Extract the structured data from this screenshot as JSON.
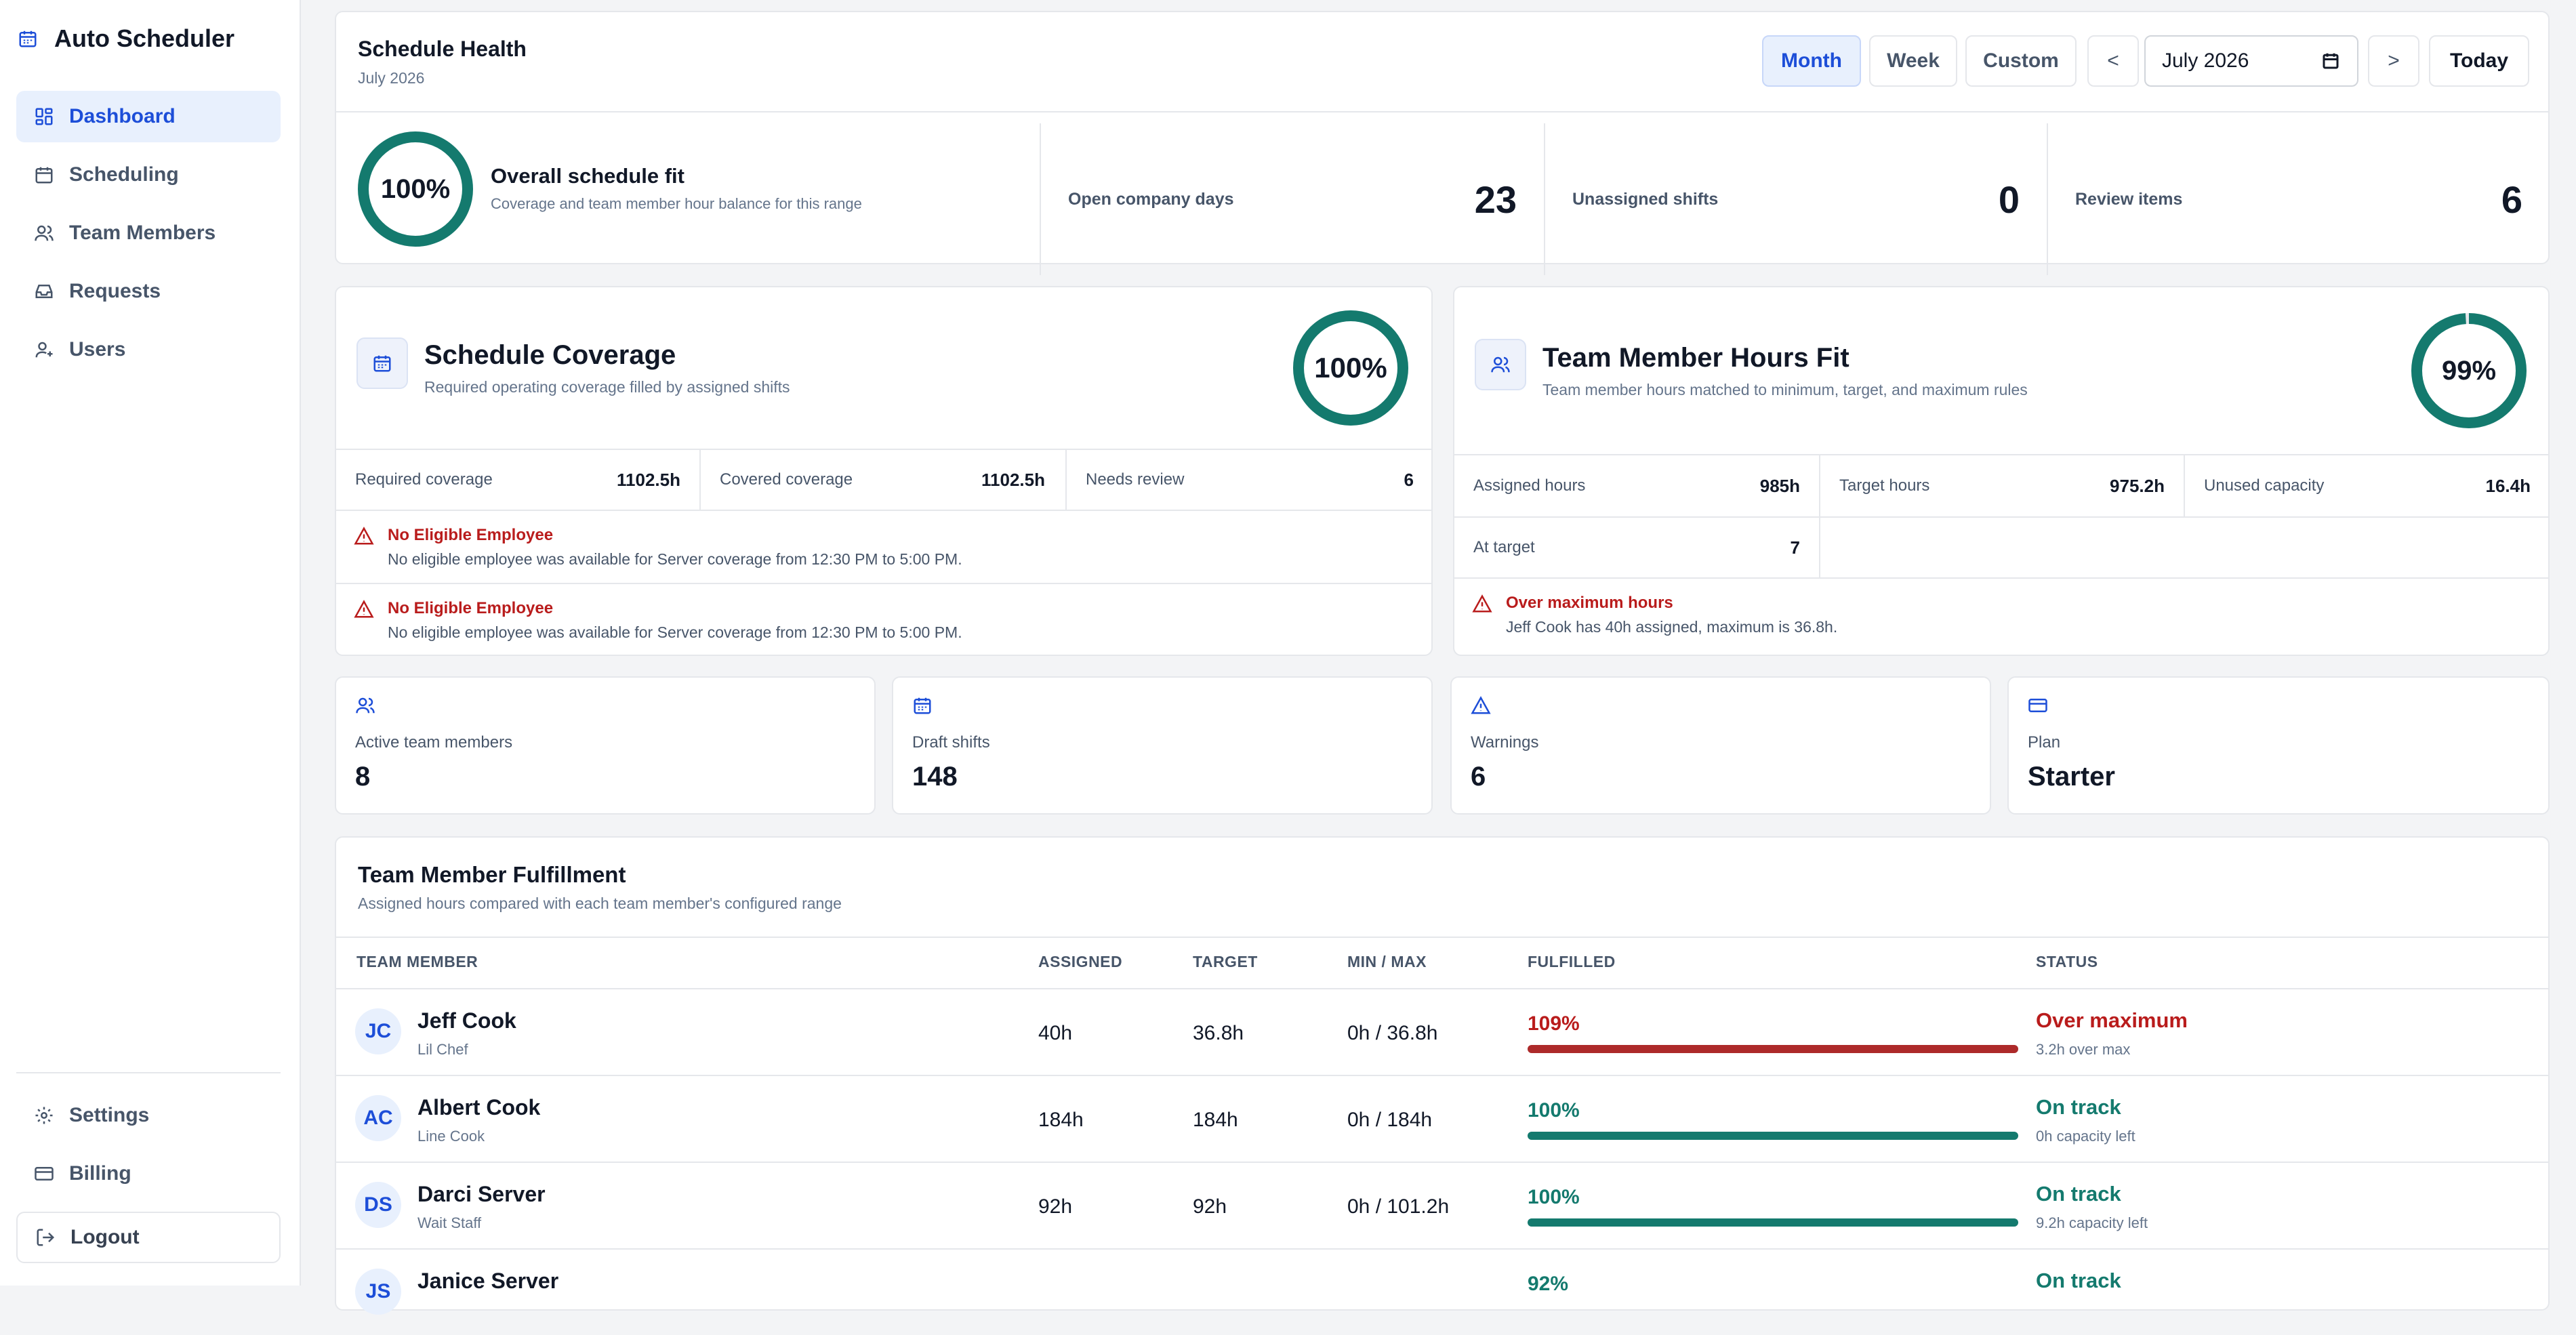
{
  "app": {
    "title": "Auto Scheduler",
    "icon": "calendar-icon"
  },
  "sidebar": {
    "items": [
      {
        "label": "Dashboard",
        "icon": "dashboard-icon",
        "active": true
      },
      {
        "label": "Scheduling",
        "icon": "calendar-icon"
      },
      {
        "label": "Team Members",
        "icon": "users-icon"
      },
      {
        "label": "Requests",
        "icon": "inbox-icon"
      },
      {
        "label": "Users",
        "icon": "user-plus-icon"
      }
    ],
    "bottom": [
      {
        "label": "Settings",
        "icon": "gear-icon"
      },
      {
        "label": "Billing",
        "icon": "credit-card-icon"
      },
      {
        "label": "Logout",
        "icon": "logout-icon"
      }
    ]
  },
  "health": {
    "title": "Schedule Health",
    "subtitle": "July 2026",
    "range_tabs": [
      "Month",
      "Week",
      "Custom"
    ],
    "active_tab": "Month",
    "prev_label": "<",
    "next_label": ">",
    "date_value": "July 2026",
    "today_label": "Today",
    "overall": {
      "percent_label": "100%",
      "percent": 100,
      "title": "Overall schedule fit",
      "description": "Coverage and team member hour balance for this range"
    },
    "stats": [
      {
        "label": "Open company days",
        "value": "23"
      },
      {
        "label": "Unassigned shifts",
        "value": "0"
      },
      {
        "label": "Review items",
        "value": "6"
      }
    ]
  },
  "coverage": {
    "title": "Schedule Coverage",
    "subtitle": "Required operating coverage filled by assigned shifts",
    "percent_label": "100%",
    "percent": 100,
    "metrics": [
      {
        "label": "Required coverage",
        "value": "1102.5h"
      },
      {
        "label": "Covered coverage",
        "value": "1102.5h"
      },
      {
        "label": "Needs review",
        "value": "6"
      }
    ],
    "alerts": [
      {
        "title": "No Eligible Employee",
        "description": "No eligible employee was available for Server coverage from 12:30 PM to 5:00 PM."
      },
      {
        "title": "No Eligible Employee",
        "description": "No eligible employee was available for Server coverage from 12:30 PM to 5:00 PM."
      }
    ]
  },
  "hours_fit": {
    "title": "Team Member Hours Fit",
    "subtitle": "Team member hours matched to minimum, target, and maximum rules",
    "percent_label": "99%",
    "percent": 99,
    "metrics": [
      {
        "label": "Assigned hours",
        "value": "985h"
      },
      {
        "label": "Target hours",
        "value": "975.2h"
      },
      {
        "label": "Unused capacity",
        "value": "16.4h"
      },
      {
        "label": "At target",
        "value": "7"
      }
    ],
    "alert": {
      "title": "Over maximum hours",
      "description": "Jeff Cook has 40h assigned, maximum is 36.8h."
    }
  },
  "summary": [
    {
      "label": "Active team members",
      "value": "8",
      "icon": "users-icon"
    },
    {
      "label": "Draft shifts",
      "value": "148",
      "icon": "calendar-icon"
    },
    {
      "label": "Warnings",
      "value": "6",
      "icon": "warning-icon"
    },
    {
      "label": "Plan",
      "value": "Starter",
      "icon": "credit-card-icon"
    }
  ],
  "fulfillment": {
    "title": "Team Member Fulfillment",
    "subtitle": "Assigned hours compared with each team member's configured range",
    "columns": [
      "TEAM MEMBER",
      "ASSIGNED",
      "TARGET",
      "MIN / MAX",
      "FULFILLED",
      "STATUS"
    ],
    "rows": [
      {
        "initials": "JC",
        "name": "Jeff Cook",
        "role": "Lil Chef",
        "assigned": "40h",
        "target": "36.8h",
        "minmax": "0h / 36.8h",
        "fulfilled_label": "109%",
        "fulfilled": 109,
        "status": "Over maximum",
        "status_detail": "3.2h over max",
        "level": "over"
      },
      {
        "initials": "AC",
        "name": "Albert Cook",
        "role": "Line Cook",
        "assigned": "184h",
        "target": "184h",
        "minmax": "0h / 184h",
        "fulfilled_label": "100%",
        "fulfilled": 100,
        "status": "On track",
        "status_detail": "0h capacity left",
        "level": "ok"
      },
      {
        "initials": "DS",
        "name": "Darci Server",
        "role": "Wait Staff",
        "assigned": "92h",
        "target": "92h",
        "minmax": "0h / 101.2h",
        "fulfilled_label": "100%",
        "fulfilled": 100,
        "status": "On track",
        "status_detail": "9.2h capacity left",
        "level": "ok"
      },
      {
        "initials": "JS",
        "name": "Janice Server",
        "role": "",
        "assigned": "",
        "target": "",
        "minmax": "",
        "fulfilled_label": "92%",
        "fulfilled": 92,
        "status": "On track",
        "status_detail": "",
        "level": "ok"
      }
    ]
  },
  "colors": {
    "accent": "#1d4ed8",
    "ring": "#147a6e",
    "ok": "#147a6e",
    "danger": "#b91c1c",
    "danger_bar": "#ad2a2a"
  }
}
